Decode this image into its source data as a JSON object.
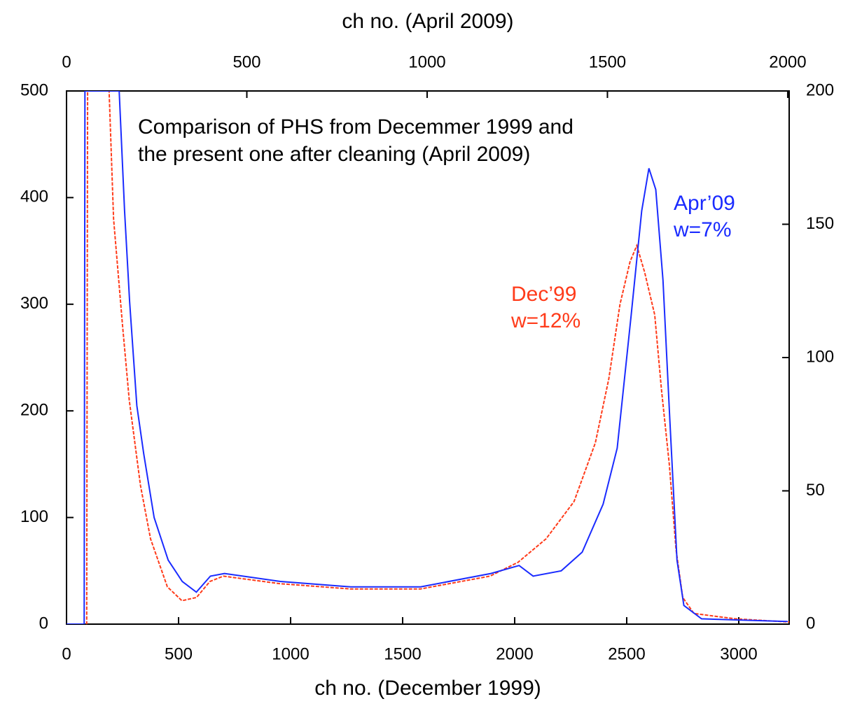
{
  "chart_data": {
    "type": "line",
    "annotation": [
      "Comparison of PHS from Decemmer 1999 and",
      "the present one after cleaning (April 2009)"
    ],
    "xlabel": "ch no. (December 1999)",
    "x2label": "ch no. (April 2009)",
    "xlim": [
      0,
      3225
    ],
    "xticks": [
      0,
      500,
      1000,
      1500,
      2000,
      2500,
      3000
    ],
    "x2lim": [
      0,
      2004
    ],
    "x2ticks": [
      0,
      500,
      1000,
      1500,
      2000
    ],
    "ylim": [
      0,
      500
    ],
    "yticks": [
      0,
      100,
      200,
      300,
      400,
      500
    ],
    "y2lim": [
      0,
      200
    ],
    "y2ticks": [
      0,
      50,
      100,
      150,
      200
    ],
    "series": [
      {
        "name": "Dec’99",
        "width": "w=12%",
        "color": "#ff3b1a",
        "axis": "y",
        "xaxis": "x",
        "dashed": true,
        "x": [
          0,
          90,
          94,
          190,
          210,
          250,
          280,
          330,
          375,
          450,
          515,
          580,
          640,
          700,
          950,
          1265,
          1580,
          1890,
          2015,
          2140,
          2265,
          2360,
          2420,
          2470,
          2515,
          2545,
          2580,
          2625,
          2655,
          2690,
          2720,
          2750,
          2800,
          2985,
          3225
        ],
        "values": [
          0,
          0,
          500,
          500,
          380,
          280,
          210,
          130,
          80,
          35,
          22,
          25,
          40,
          45,
          38,
          33,
          33,
          45,
          58,
          80,
          115,
          170,
          230,
          300,
          340,
          355,
          330,
          290,
          220,
          150,
          70,
          25,
          10,
          5,
          2
        ]
      },
      {
        "name": "Apr’09",
        "width": "w=7%",
        "color": "#1a2bff",
        "axis": "y2",
        "xaxis": "x2",
        "dashed": false,
        "x": [
          0,
          49,
          51,
          146,
          161,
          175,
          195,
          214,
          243,
          282,
          321,
          360,
          399,
          438,
          593,
          788,
          982,
          1177,
          1255,
          1294,
          1372,
          1430,
          1488,
          1527,
          1566,
          1595,
          1615,
          1634,
          1654,
          1673,
          1693,
          1712,
          1761,
          2000
        ],
        "values": [
          0,
          0,
          200,
          200,
          155,
          121,
          82,
          64,
          40,
          24,
          16,
          12,
          18,
          19,
          16,
          14,
          14,
          19,
          22,
          18,
          20,
          27,
          45,
          66,
          116,
          155,
          171,
          163,
          129,
          77,
          24,
          7,
          2,
          1
        ]
      }
    ]
  }
}
